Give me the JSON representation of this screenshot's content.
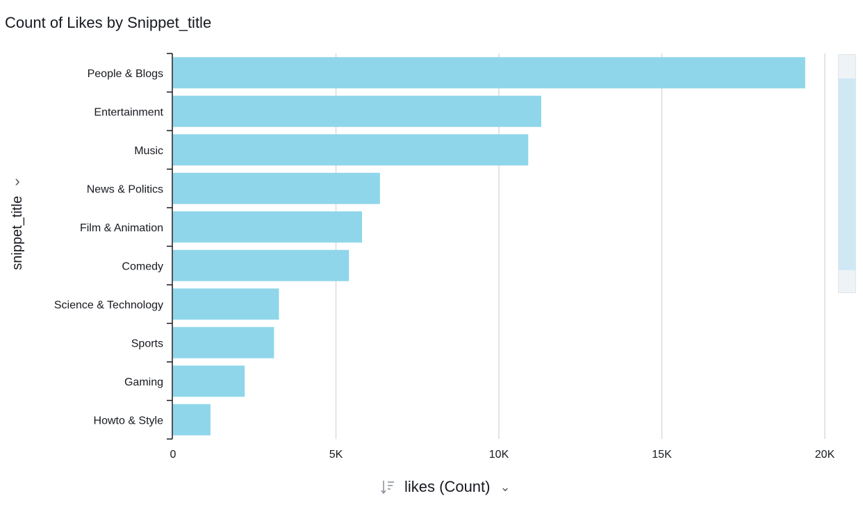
{
  "visual": {
    "title": "Count of Likes by Snippet_title",
    "y_field_label": "snippet_title",
    "x_field_label": "likes (Count)",
    "y_chevron_icon": "chevron-right-icon",
    "x_chevron_icon": "chevron-down-icon",
    "sort_icon": "sort-icon"
  },
  "colors": {
    "bar": "#8fd6ea",
    "grid": "#dcdcdc",
    "axis": "#16191f"
  },
  "chart_data": {
    "type": "bar",
    "orientation": "horizontal",
    "title": "Count of Likes by Snippet_title",
    "xlabel": "likes (Count)",
    "ylabel": "snippet_title",
    "categories": [
      "People & Blogs",
      "Entertainment",
      "Music",
      "News & Politics",
      "Film & Animation",
      "Comedy",
      "Science & Technology",
      "Sports",
      "Gaming",
      "Howto & Style"
    ],
    "values": [
      19400,
      11300,
      10900,
      6350,
      5800,
      5400,
      3250,
      3100,
      2200,
      1150
    ],
    "xlim": [
      0,
      20000
    ],
    "xticks": [
      0,
      5000,
      10000,
      15000,
      20000
    ],
    "xtick_labels": [
      "0",
      "5K",
      "10K",
      "15K",
      "20K"
    ],
    "grid": true
  }
}
